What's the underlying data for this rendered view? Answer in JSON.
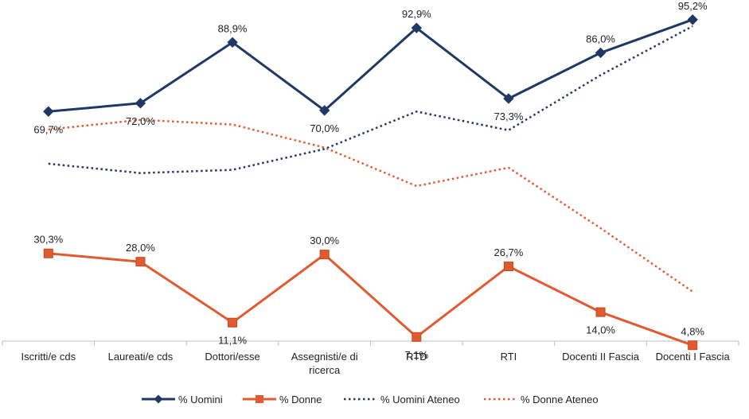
{
  "chart_data": {
    "type": "line",
    "categories": [
      "Iscritti/e cds",
      "Laureati/e cds",
      "Dottori/esse",
      "Assegnisti/e di ricerca",
      "RTD",
      "RTI",
      "Docenti II Fascia",
      "Docenti I Fascia"
    ],
    "category_lines": [
      [
        "Iscritti/e cds"
      ],
      [
        "Laureati/e cds"
      ],
      [
        "Dottori/esse"
      ],
      [
        "Assegnisti/e di",
        "ricerca"
      ],
      [
        "RTD"
      ],
      [
        "RTI"
      ],
      [
        "Docenti II Fascia"
      ],
      [
        "Docenti I Fascia"
      ]
    ],
    "ylim": [
      0,
      100
    ],
    "grid": false,
    "legend_position": "bottom",
    "series": [
      {
        "name": "% Uomini",
        "values": [
          69.7,
          72.0,
          88.9,
          70.0,
          92.9,
          73.3,
          86.0,
          95.2
        ],
        "labels": [
          "69,7%",
          "72,0%",
          "88,9%",
          "70,0%",
          "92,9%",
          "73,3%",
          "86,0%",
          "95,2%"
        ],
        "label_side": [
          "below",
          "below",
          "above",
          "below",
          "above",
          "below",
          "above",
          "above"
        ],
        "color": "#1f3864",
        "style": "solid",
        "marker": "diamond"
      },
      {
        "name": "% Donne",
        "values": [
          30.3,
          28.0,
          11.1,
          30.0,
          7.1,
          26.7,
          14.0,
          4.8
        ],
        "labels": [
          "30,3%",
          "28,0%",
          "11,1%",
          "30,0%",
          "7,1%",
          "26,7%",
          "14,0%",
          "4,8%"
        ],
        "label_side": [
          "above",
          "above",
          "below",
          "above",
          "below",
          "above",
          "below",
          "above"
        ],
        "color": "#e15b32",
        "style": "solid",
        "marker": "square"
      },
      {
        "name": "% Uomini Ateneo",
        "values": [
          55.2,
          52.6,
          53.5,
          59.3,
          69.7,
          64.5,
          79.8,
          93.4
        ],
        "color": "#1f3864",
        "style": "dotted",
        "marker": "none"
      },
      {
        "name": "% Donne Ateneo",
        "values": [
          64.7,
          67.4,
          66.1,
          59.7,
          49.0,
          54.1,
          37.3,
          19.7
        ],
        "color": "#e15b32",
        "style": "dotted",
        "marker": "none"
      }
    ]
  }
}
